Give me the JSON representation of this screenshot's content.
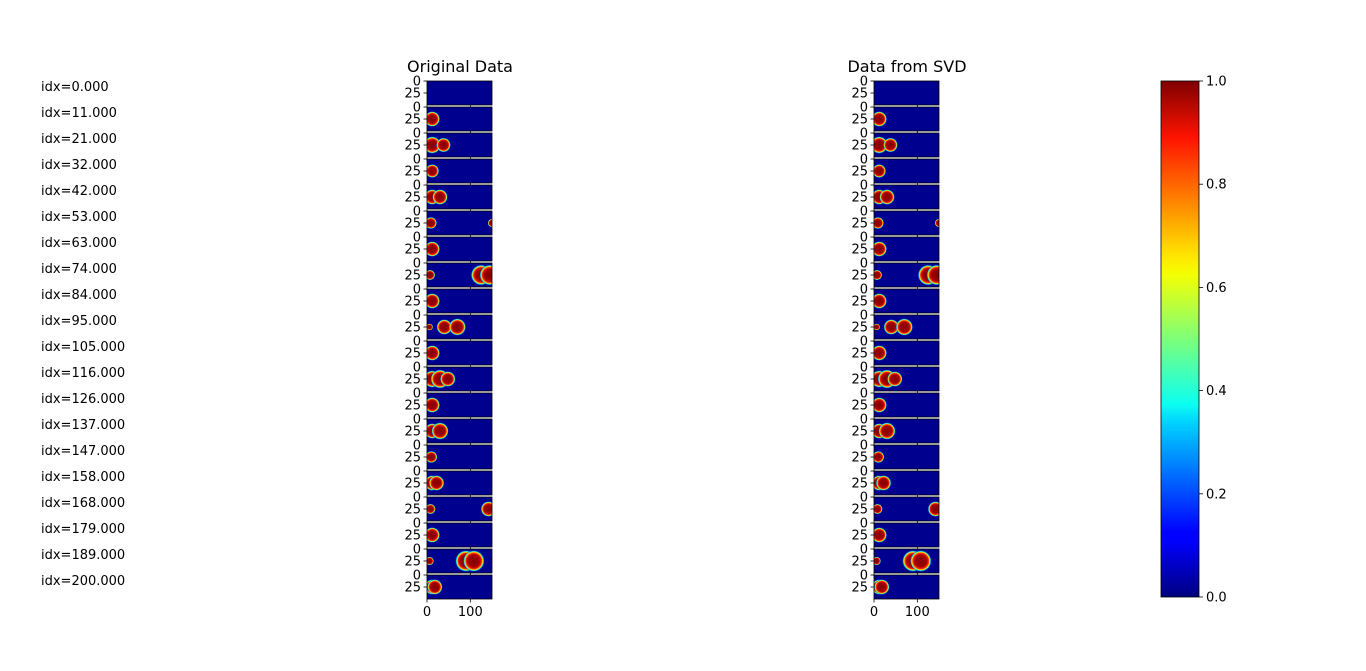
{
  "chart_data": {
    "type": "heatmap",
    "row_labels": [
      "idx=0.000",
      "idx=11.000",
      "idx=21.000",
      "idx=32.000",
      "idx=42.000",
      "idx=53.000",
      "idx=63.000",
      "idx=74.000",
      "idx=84.000",
      "idx=95.000",
      "idx=105.000",
      "idx=116.000",
      "idx=126.000",
      "idx=137.000",
      "idx=147.000",
      "idx=158.000",
      "idx=168.000",
      "idx=179.000",
      "idx=189.000",
      "idx=200.000"
    ],
    "panels": [
      {
        "title": "Original Data"
      },
      {
        "title": "Data from SVD"
      }
    ],
    "xlim": [
      0,
      150
    ],
    "ylim": [
      0,
      50
    ],
    "x_ticks": [
      "0",
      "100"
    ],
    "y_ticks": [
      "0",
      "25"
    ],
    "x_tick_values": [
      0,
      100
    ],
    "y_tick_values": [
      0,
      25
    ],
    "colorbar": {
      "colormap": "jet",
      "range": [
        0.0,
        1.0
      ],
      "ticks": [
        "0.0",
        "0.2",
        "0.4",
        "0.6",
        "0.8",
        "1.0"
      ],
      "tick_values": [
        0,
        0.2,
        0.4,
        0.6,
        0.8,
        1.0
      ]
    },
    "blobs": [
      [],
      [
        [
          12,
          25,
          18
        ]
      ],
      [
        [
          12,
          25,
          20
        ],
        [
          38,
          25,
          17
        ]
      ],
      [
        [
          12,
          25,
          16
        ]
      ],
      [
        [
          12,
          25,
          18
        ],
        [
          30,
          25,
          18
        ]
      ],
      [
        [
          9,
          25,
          14
        ],
        [
          150,
          25,
          10
        ]
      ],
      [
        [
          12,
          25,
          18
        ]
      ],
      [
        [
          7,
          25,
          12
        ],
        [
          125,
          25,
          24
        ],
        [
          145,
          25,
          24
        ]
      ],
      [
        [
          12,
          25,
          18
        ]
      ],
      [
        [
          6,
          25,
          8
        ],
        [
          40,
          25,
          18
        ],
        [
          70,
          25,
          20
        ]
      ],
      [
        [
          12,
          25,
          18
        ]
      ],
      [
        [
          12,
          25,
          20
        ],
        [
          30,
          25,
          22
        ],
        [
          48,
          25,
          18
        ]
      ],
      [
        [
          12,
          25,
          18
        ]
      ],
      [
        [
          12,
          25,
          18
        ],
        [
          30,
          25,
          20
        ]
      ],
      [
        [
          10,
          25,
          14
        ]
      ],
      [
        [
          12,
          25,
          18
        ],
        [
          22,
          25,
          18
        ]
      ],
      [
        [
          8,
          25,
          12
        ],
        [
          142,
          25,
          18
        ]
      ],
      [
        [
          12,
          25,
          18
        ]
      ],
      [
        [
          6,
          25,
          10
        ],
        [
          90,
          25,
          25
        ],
        [
          108,
          25,
          25
        ]
      ],
      [
        [
          12,
          25,
          18
        ],
        [
          18,
          25,
          18
        ]
      ]
    ],
    "grid": false
  }
}
